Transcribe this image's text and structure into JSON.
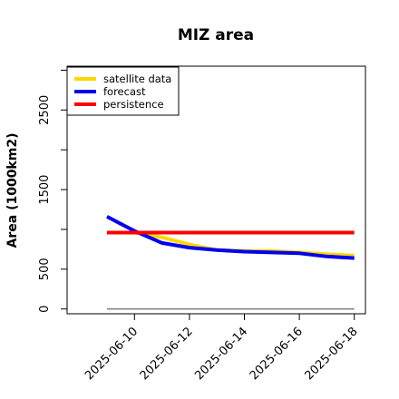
{
  "chart_data": {
    "type": "line",
    "title": "MIZ area",
    "xlabel": "",
    "ylabel": "Area (1000km2)",
    "x": [
      "2025-06-09",
      "2025-06-10",
      "2025-06-11",
      "2025-06-12",
      "2025-06-13",
      "2025-06-14",
      "2025-06-15",
      "2025-06-16",
      "2025-06-17",
      "2025-06-18"
    ],
    "series": [
      {
        "name": "satellite data",
        "color": "#ffd700",
        "values": [
          null,
          960,
          900,
          810,
          740,
          730,
          730,
          710,
          690,
          670
        ]
      },
      {
        "name": "forecast",
        "color": "#0000ee",
        "values": [
          1160,
          980,
          830,
          770,
          740,
          720,
          710,
          700,
          660,
          640
        ]
      },
      {
        "name": "persistence",
        "color": "#ff0000",
        "values": [
          960,
          960,
          960,
          960,
          960,
          960,
          960,
          960,
          960,
          960
        ]
      },
      {
        "name": "",
        "color": "#808080",
        "values": [
          0,
          0,
          0,
          0,
          0,
          0,
          0,
          0,
          0,
          0
        ]
      }
    ],
    "xticks": [
      "2025-06-10",
      "2025-06-12",
      "2025-06-14",
      "2025-06-16",
      "2025-06-18"
    ],
    "xtick_colors": [
      "#228b22",
      "#000000",
      "#000000",
      "#000000",
      "#000000"
    ],
    "yticks": [
      0,
      500,
      1500,
      2500
    ],
    "yminor_ticks": [
      1000,
      2000,
      3000
    ],
    "ylim": [
      -60,
      3050
    ],
    "grid": false,
    "legend_position": "top-left"
  }
}
